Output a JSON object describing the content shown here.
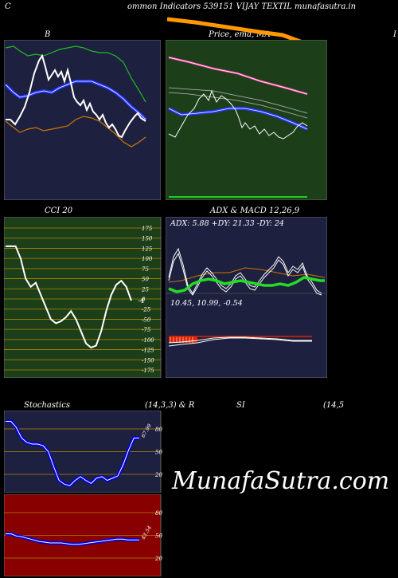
{
  "header": {
    "letter": "C",
    "title": "ommon  Indicators 539151 VIJAY TEXTIL  munafasutra.in"
  },
  "panels": {
    "bollinger": {
      "label": "B",
      "bg": "#1e2040"
    },
    "price": {
      "label": "Price,  ema,   MA",
      "right_edge_label": "I",
      "bg": "#1c3f1a"
    },
    "cci": {
      "label": "CCI 20",
      "bg": "#1c3f1a",
      "ticks": [
        "175",
        "150",
        "125",
        "100",
        "75",
        "50",
        "25",
        "0",
        "-25",
        "-50",
        "-75",
        "-100",
        "-125",
        "-150",
        "-175"
      ],
      "value_label": "-4",
      "chart_data": {
        "type": "line",
        "ylim": [
          -175,
          175
        ],
        "values": [
          130,
          130,
          130,
          100,
          50,
          30,
          40,
          10,
          -20,
          -50,
          -60,
          -55,
          -45,
          -30,
          -50,
          -80,
          -110,
          -120,
          -115,
          -80,
          -30,
          10,
          35,
          45,
          30,
          -4
        ]
      }
    },
    "adx": {
      "label": "ADX  & MACD 12,26,9",
      "values_text": "ADX: 5.88  +DY: 21.33 -DY: 24",
      "bg": "#1e2040"
    },
    "macd": {
      "values_text": "10.45,  10.99,  -0.54"
    },
    "stochastics": {
      "label": "Stochastics",
      "params": "(14,3,3) & R",
      "bg": "#1e2040",
      "ticks": [
        "80",
        "50",
        "20"
      ],
      "value_label": "67.99",
      "chart_data": {
        "type": "line",
        "ylim": [
          0,
          100
        ],
        "values": [
          90,
          90,
          82,
          68,
          62,
          60,
          60,
          58,
          50,
          30,
          12,
          7,
          5,
          12,
          17,
          12,
          8,
          15,
          17,
          12,
          15,
          18,
          33,
          52,
          68,
          68
        ]
      }
    },
    "rsi": {
      "label": "SI",
      "params": "(14,5",
      "bg": "#880000",
      "ticks": [
        "80",
        "50",
        "20"
      ],
      "value_label": "43.54",
      "chart_data": {
        "type": "line",
        "ylim": [
          0,
          100
        ],
        "values": [
          52,
          52,
          49,
          48,
          46,
          44,
          42,
          41,
          40,
          40,
          40,
          39,
          38,
          38,
          39,
          40,
          41,
          42,
          43,
          44,
          45,
          45,
          44,
          44,
          44
        ]
      }
    }
  },
  "watermark": "MunafaSutra.com"
}
